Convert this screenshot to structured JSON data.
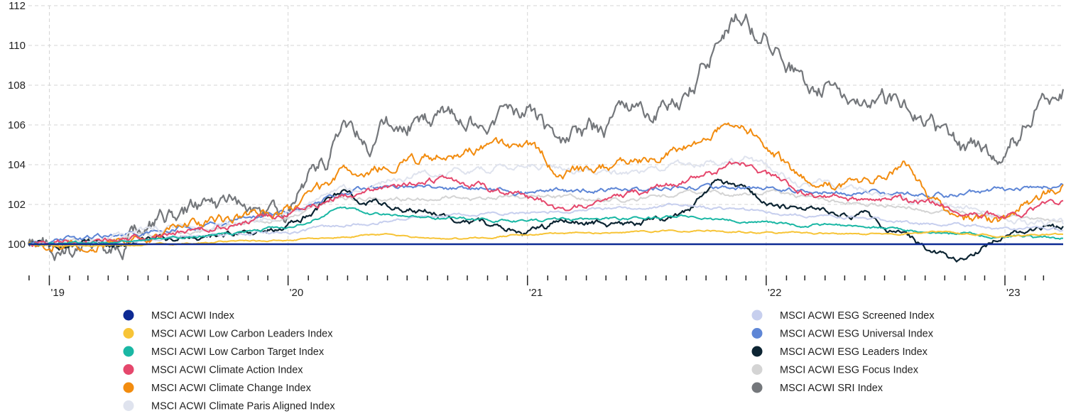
{
  "chart_data": {
    "type": "line",
    "title": "",
    "xlabel": "",
    "ylabel": "",
    "ylim": [
      99,
      112
    ],
    "x_range": [
      "2018-11-30",
      "2023-03-31"
    ],
    "y_ticks": [
      100,
      102,
      104,
      106,
      108,
      110,
      112
    ],
    "x_ticks": [
      {
        "label": "'19",
        "date": "2019-01-01"
      },
      {
        "label": "'20",
        "date": "2020-01-01"
      },
      {
        "label": "'21",
        "date": "2021-01-01"
      },
      {
        "label": "'22",
        "date": "2022-01-01"
      },
      {
        "label": "'23",
        "date": "2023-01-01"
      }
    ],
    "grid": true,
    "legend_position": "bottom",
    "series": [
      {
        "name": "MSCI ACWI Index",
        "color": "#0d2a94",
        "width": 2.5,
        "x": [
          "2018-11-30",
          "2023-03-31"
        ],
        "y": [
          100,
          100
        ]
      },
      {
        "name": "MSCI ACWI Low Carbon Leaders Index",
        "color": "#f7c437",
        "width": 2,
        "x": [
          "2018-11-30",
          "2019-04-01",
          "2019-09-01",
          "2020-01-01",
          "2020-06-01",
          "2020-09-01",
          "2021-01-01",
          "2021-06-01",
          "2021-09-01",
          "2022-01-01",
          "2022-06-01",
          "2022-10-01",
          "2023-01-01",
          "2023-03-31"
        ],
        "y": [
          100.0,
          99.9,
          100.1,
          100.2,
          100.5,
          100.2,
          100.5,
          100.6,
          100.7,
          100.6,
          100.5,
          100.6,
          100.4,
          100.5
        ]
      },
      {
        "name": "MSCI ACWI Low Carbon Target Index",
        "color": "#1ab7a4",
        "width": 2,
        "x": [
          "2018-11-30",
          "2019-04-01",
          "2019-09-01",
          "2020-01-01",
          "2020-03-01",
          "2020-03-23",
          "2020-06-01",
          "2020-09-01",
          "2021-01-01",
          "2021-06-01",
          "2021-09-01",
          "2022-01-01",
          "2022-06-01",
          "2022-10-01",
          "2023-01-01",
          "2023-03-31"
        ],
        "y": [
          100.0,
          100.1,
          100.4,
          100.9,
          101.5,
          101.8,
          101.5,
          101.3,
          101.2,
          101.3,
          101.4,
          101.1,
          100.9,
          100.6,
          100.4,
          100.3
        ]
      },
      {
        "name": "MSCI ACWI Climate Action Index",
        "color": "#e5476c",
        "width": 2,
        "x": [
          "2018-11-30",
          "2019-04-01",
          "2019-09-01",
          "2020-01-01",
          "2020-03-23",
          "2020-06-01",
          "2020-09-01",
          "2021-01-01",
          "2021-03-01",
          "2021-06-01",
          "2021-09-01",
          "2021-12-01",
          "2022-03-01",
          "2022-06-01",
          "2022-10-01",
          "2023-01-01",
          "2023-03-31"
        ],
        "y": [
          100.0,
          100.2,
          100.8,
          101.6,
          102.4,
          102.8,
          103.3,
          102.5,
          101.8,
          102.4,
          103.2,
          104.1,
          102.6,
          102.4,
          101.9,
          101.4,
          102.2
        ]
      },
      {
        "name": "MSCI ACWI Climate Change Index",
        "color": "#f28c0f",
        "width": 2,
        "x": [
          "2018-11-30",
          "2019-04-01",
          "2019-09-01",
          "2020-01-01",
          "2020-03-23",
          "2020-06-01",
          "2020-09-01",
          "2021-01-01",
          "2021-03-01",
          "2021-06-01",
          "2021-09-01",
          "2021-11-15",
          "2022-01-01",
          "2022-03-01",
          "2022-06-01",
          "2022-08-01",
          "2022-10-01",
          "2023-01-01",
          "2023-03-31"
        ],
        "y": [
          100.0,
          100.2,
          100.9,
          101.6,
          103.4,
          103.9,
          104.6,
          104.9,
          103.6,
          104.0,
          104.8,
          106.4,
          105.2,
          103.2,
          103.0,
          104.2,
          101.7,
          101.0,
          103.0
        ]
      },
      {
        "name": "MSCI ACWI Climate Paris Aligned Index",
        "color": "#dfe3ee",
        "width": 2,
        "x": [
          "2018-11-30",
          "2019-04-01",
          "2019-09-01",
          "2020-01-01",
          "2020-03-23",
          "2020-06-01",
          "2020-09-01",
          "2021-01-01",
          "2021-06-01",
          "2021-09-01",
          "2021-12-01",
          "2022-03-01",
          "2022-06-01",
          "2022-10-01",
          "2023-01-01",
          "2023-03-31"
        ],
        "y": [
          100.0,
          100.3,
          100.9,
          101.5,
          102.8,
          103.2,
          103.7,
          103.9,
          103.6,
          104.0,
          104.3,
          103.0,
          102.8,
          101.9,
          101.3,
          101.0
        ]
      },
      {
        "name": "MSCI ACWI ESG Screened Index",
        "color": "#c7cfee",
        "width": 2,
        "x": [
          "2018-11-30",
          "2019-04-01",
          "2019-09-01",
          "2020-01-01",
          "2020-06-01",
          "2020-09-01",
          "2021-01-01",
          "2021-06-01",
          "2021-09-01",
          "2022-01-01",
          "2022-06-01",
          "2022-10-01",
          "2023-01-01",
          "2023-03-31"
        ],
        "y": [
          100.0,
          100.1,
          100.4,
          100.6,
          101.2,
          101.4,
          101.6,
          101.8,
          101.9,
          101.6,
          101.3,
          101.0,
          100.8,
          100.7
        ]
      },
      {
        "name": "MSCI ACWI ESG Universal Index",
        "color": "#5e86d6",
        "width": 2,
        "x": [
          "2018-11-30",
          "2019-04-01",
          "2019-09-01",
          "2020-01-01",
          "2020-03-23",
          "2020-06-01",
          "2020-09-01",
          "2021-01-01",
          "2021-06-01",
          "2021-09-01",
          "2022-01-01",
          "2022-06-01",
          "2022-10-01",
          "2023-01-01",
          "2023-03-31"
        ],
        "y": [
          100.0,
          100.4,
          101.0,
          101.7,
          102.7,
          102.9,
          102.8,
          102.6,
          102.7,
          102.9,
          102.8,
          102.6,
          102.5,
          102.7,
          103.0
        ]
      },
      {
        "name": "MSCI ACWI ESG Leaders Index",
        "color": "#0c2432",
        "width": 2.2,
        "x": [
          "2018-11-30",
          "2019-04-01",
          "2019-09-01",
          "2020-01-01",
          "2020-03-23",
          "2020-06-01",
          "2020-09-01",
          "2021-01-01",
          "2021-03-01",
          "2021-06-01",
          "2021-09-01",
          "2021-10-15",
          "2022-01-01",
          "2022-03-01",
          "2022-06-01",
          "2022-08-01",
          "2022-10-25",
          "2023-01-01",
          "2023-03-31"
        ],
        "y": [
          100.0,
          99.9,
          100.4,
          100.9,
          102.5,
          102.0,
          101.5,
          100.5,
          101.2,
          101.0,
          101.5,
          103.1,
          102.2,
          101.7,
          101.5,
          100.3,
          99.0,
          100.5,
          100.9
        ]
      },
      {
        "name": "MSCI ACWI ESG Focus Index",
        "color": "#d4d4d4",
        "width": 2,
        "x": [
          "2018-11-30",
          "2019-04-01",
          "2019-09-01",
          "2020-01-01",
          "2020-03-23",
          "2020-06-01",
          "2020-09-01",
          "2021-01-01",
          "2021-06-01",
          "2021-09-01",
          "2022-01-01",
          "2022-06-01",
          "2022-10-01",
          "2023-01-01",
          "2023-03-31"
        ],
        "y": [
          100.0,
          100.2,
          100.7,
          101.3,
          102.3,
          102.2,
          102.4,
          102.4,
          102.2,
          102.5,
          102.6,
          102.0,
          101.7,
          101.4,
          101.2
        ]
      },
      {
        "name": "MSCI ACWI SRI Index",
        "color": "#74777b",
        "width": 2.2,
        "x": [
          "2018-11-30",
          "2019-03-01",
          "2019-06-01",
          "2019-09-01",
          "2020-01-01",
          "2020-03-01",
          "2020-03-23",
          "2020-05-01",
          "2020-08-01",
          "2020-11-01",
          "2021-01-01",
          "2021-03-01",
          "2021-06-01",
          "2021-09-01",
          "2021-11-15",
          "2022-01-01",
          "2022-03-01",
          "2022-06-01",
          "2022-09-01",
          "2022-10-25",
          "2023-01-01",
          "2023-03-31"
        ],
        "y": [
          100.0,
          99.5,
          100.8,
          101.8,
          101.6,
          104.2,
          106.2,
          105.3,
          106.5,
          106.0,
          106.8,
          105.0,
          106.2,
          107.6,
          111.4,
          110.5,
          108.2,
          107.6,
          106.6,
          104.7,
          105.0,
          107.8
        ]
      }
    ]
  }
}
